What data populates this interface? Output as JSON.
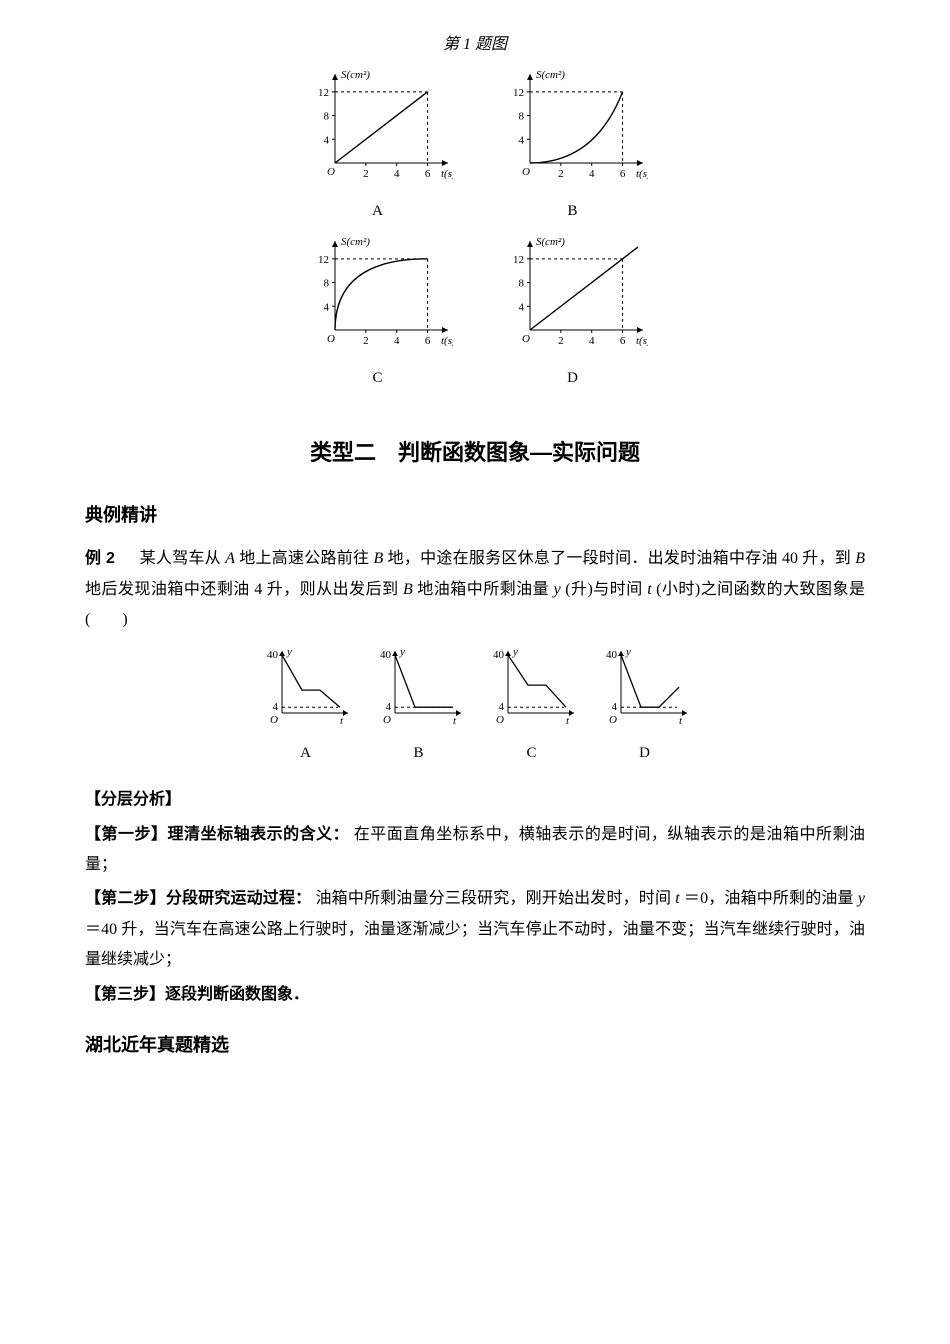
{
  "figure1": {
    "caption": "第 1 题图",
    "yAxisLabel": "S(cm²)",
    "xAxisLabel": "t(s)",
    "yTicks": [
      4,
      8,
      12
    ],
    "xTicks": [
      2,
      4,
      6
    ],
    "axis_color": "#000000",
    "dash_color": "#000000",
    "curve_color": "#000000",
    "background": "#ffffff",
    "label_fontsize": 11,
    "charts": [
      {
        "label": "A",
        "shape": "linear",
        "endX": 6,
        "endY": 12,
        "dashedMaxX": 6,
        "dashedMaxY": 12
      },
      {
        "label": "B",
        "shape": "concave-up",
        "endX": 6,
        "endY": 12,
        "dashedMaxX": 6,
        "dashedMaxY": 12
      },
      {
        "label": "C",
        "shape": "concave-down",
        "endX": 6,
        "endY": 12,
        "dashedMaxX": 6,
        "dashedMaxY": 12
      },
      {
        "label": "D",
        "shape": "linear",
        "endX": 7,
        "endY": 14,
        "dashedMaxX": 6,
        "dashedMaxY": 12
      }
    ]
  },
  "sectionTitle": "类型二　判断函数图象—实际问题",
  "sub1": "典例精讲",
  "example2": {
    "prefix": "例 2",
    "body1": "某人驾车从",
    "A": "A",
    "body2": " 地上高速公路前往 ",
    "B": "B",
    "body3": " 地，中途在服务区休息了一段时间．出发时油箱中存油 40 升，到 ",
    "body4": " 地后发现油箱中还剩油 4 升，则从出发后到 ",
    "body5": " 地油箱中所剩油量 ",
    "yvar": "y",
    "body6": "(升)与时间 ",
    "tvar": "t",
    "body7": "(小时)之间函数的大致图象是(　　)"
  },
  "smallCharts": {
    "yMaxLabel": "40",
    "yLowLabel": "4",
    "originLabel": "O",
    "xLabel": "t",
    "yLabel": "y",
    "axis_color": "#000000",
    "curve_color": "#000000",
    "dash_color": "#000000",
    "yMax": 40,
    "yLow": 4,
    "charts": [
      {
        "label": "A",
        "type": "down-flat-down-touch"
      },
      {
        "label": "B",
        "type": "down-flat-flat"
      },
      {
        "label": "C",
        "type": "down-flat-down-above"
      },
      {
        "label": "D",
        "type": "down-flat-up"
      }
    ]
  },
  "analysis": {
    "header": "【分层分析】",
    "step1_bold": "【第一步】理清坐标轴表示的含义：",
    "step1_text": "在平面直角坐标系中，横轴表示的是时间，纵轴表示的是油箱中所剩油量；",
    "step2_bold": "【第二步】分段研究运动过程：",
    "step2_text_a": "油箱中所剩油量分三段研究，刚开始出发时，时间 ",
    "step2_t": "t",
    "step2_eq": "＝0，油箱中所剩的油量 ",
    "step2_y": "y",
    "step2_text_b": "＝40 升，当汽车在高速公路上行驶时，油量逐渐减少；当汽车停止不动时，油量不变；当汽车继续行驶时，油量继续减少；",
    "step3_bold": "【第三步】逐段判断函数图象．"
  },
  "sub2": "湖北近年真题精选"
}
